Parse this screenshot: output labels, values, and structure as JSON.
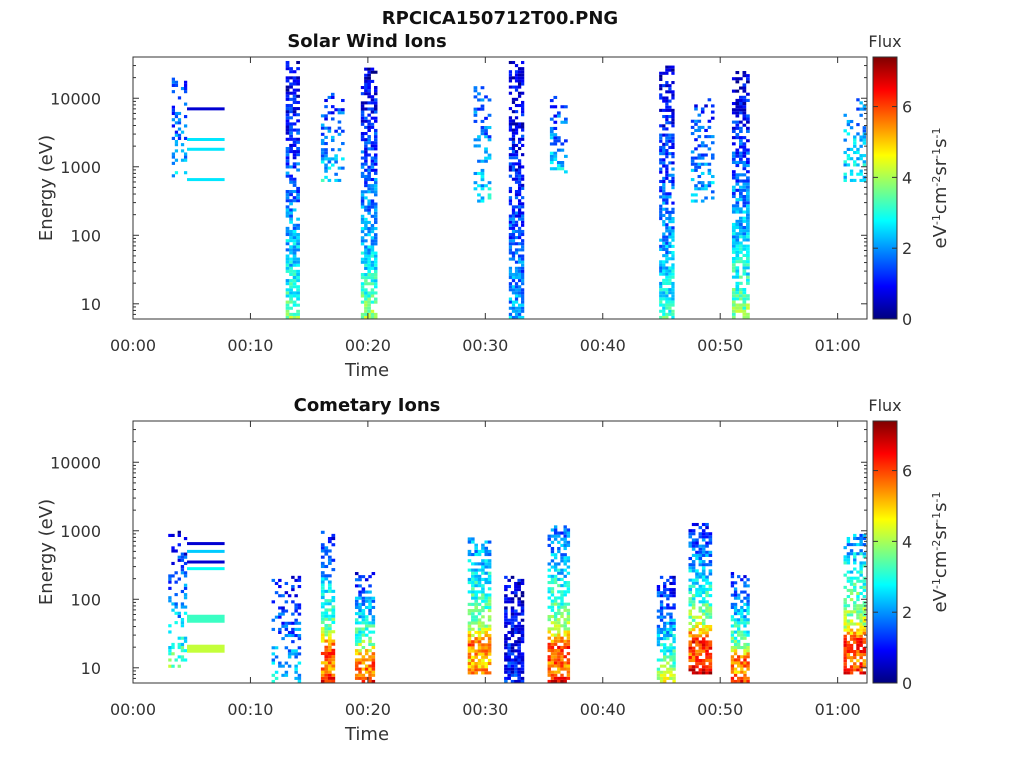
{
  "figure_title": "RPCICA150712T00.PNG",
  "colorscale": [
    "#00007f",
    "#0000ff",
    "#007fff",
    "#00ffff",
    "#7fff7f",
    "#ffff00",
    "#ff7f00",
    "#ff0000",
    "#7f0000"
  ],
  "chart_data": [
    {
      "type": "heatmap",
      "title": "Solar Wind Ions",
      "xlabel": "Time",
      "ylabel": "Energy (eV)",
      "x_ticks": [
        "00:00",
        "00:10",
        "00:20",
        "00:30",
        "00:40",
        "00:50",
        "01:00"
      ],
      "xlim_minutes": [
        0,
        62.5
      ],
      "y_scale": "log",
      "y_ticks": [
        "10",
        "100",
        "1000",
        "10000"
      ],
      "ylim": [
        6,
        40000
      ],
      "colorbar_label": "Flux",
      "colorbar_units": "eV-1cm-2sr-1s-1",
      "colorbar_ticks": [
        "0",
        "2",
        "4",
        "6"
      ],
      "colorbar_range": [
        0,
        7.4
      ],
      "bursts": [
        {
          "t_start": 13.0,
          "t_end": 14.2,
          "e_low": 6,
          "e_high": 35000,
          "v_low": 3.8,
          "v_high": 0.6
        },
        {
          "t_start": 19.4,
          "t_end": 20.8,
          "e_low": 6,
          "e_high": 28000,
          "v_low": 4.0,
          "v_high": 0.6
        },
        {
          "t_start": 32.0,
          "t_end": 33.3,
          "e_low": 6,
          "e_high": 35000,
          "v_low": 2.4,
          "v_high": 0.6
        },
        {
          "t_start": 44.8,
          "t_end": 46.1,
          "e_low": 6,
          "e_high": 30000,
          "v_low": 3.4,
          "v_high": 0.6
        },
        {
          "t_start": 51.0,
          "t_end": 52.5,
          "e_low": 6,
          "e_high": 25000,
          "v_low": 4.2,
          "v_high": 0.6
        },
        {
          "t_start": 16.0,
          "t_end": 18.0,
          "e_low": 600,
          "e_high": 12000,
          "v_low": 2.8,
          "v_high": 1.2,
          "sparse": true
        },
        {
          "t_start": 29.0,
          "t_end": 30.5,
          "e_low": 300,
          "e_high": 15000,
          "v_low": 2.8,
          "v_high": 1.4,
          "sparse": true
        },
        {
          "t_start": 35.5,
          "t_end": 37.0,
          "e_low": 800,
          "e_high": 12000,
          "v_low": 2.8,
          "v_high": 1.2,
          "sparse": true
        },
        {
          "t_start": 47.5,
          "t_end": 49.5,
          "e_low": 300,
          "e_high": 10000,
          "v_low": 2.6,
          "v_high": 1.2,
          "sparse": true
        },
        {
          "t_start": 60.5,
          "t_end": 62.4,
          "e_low": 600,
          "e_high": 10000,
          "v_low": 3.0,
          "v_high": 1.8,
          "sparse": true
        },
        {
          "t_start": 3.3,
          "t_end": 4.6,
          "e_low": 700,
          "e_high": 20000,
          "v_low": 2.6,
          "v_high": 1.2,
          "sparse": true
        }
      ],
      "lines": [
        {
          "t_start": 4.6,
          "t_end": 7.8,
          "energy": 7000,
          "value": 0.6
        },
        {
          "t_start": 4.6,
          "t_end": 7.8,
          "energy": 2500,
          "value": 2.6
        },
        {
          "t_start": 4.6,
          "t_end": 7.8,
          "energy": 1800,
          "value": 2.6
        },
        {
          "t_start": 4.6,
          "t_end": 7.8,
          "energy": 650,
          "value": 2.6
        }
      ]
    },
    {
      "type": "heatmap",
      "title": "Cometary Ions",
      "xlabel": "Time",
      "ylabel": "Energy (eV)",
      "x_ticks": [
        "00:00",
        "00:10",
        "00:20",
        "00:30",
        "00:40",
        "00:50",
        "01:00"
      ],
      "xlim_minutes": [
        0,
        62.5
      ],
      "y_scale": "log",
      "y_ticks": [
        "10",
        "100",
        "1000",
        "10000"
      ],
      "ylim": [
        6,
        40000
      ],
      "colorbar_label": "Flux",
      "colorbar_units": "eV-1cm-2sr-1s-1",
      "colorbar_ticks": [
        "0",
        "2",
        "4",
        "6"
      ],
      "colorbar_range": [
        0,
        7.4
      ],
      "bursts": [
        {
          "t_start": 3.0,
          "t_end": 4.6,
          "e_low": 10,
          "e_high": 1000,
          "v_low": 4.0,
          "v_high": 0.8,
          "sparse": true
        },
        {
          "t_start": 11.8,
          "t_end": 14.3,
          "e_low": 6,
          "e_high": 220,
          "v_low": 2.8,
          "v_high": 1.0,
          "sparse": true
        },
        {
          "t_start": 16.0,
          "t_end": 17.2,
          "e_low": 6,
          "e_high": 1000,
          "v_low": 6.8,
          "v_high": 1.0,
          "hot": true
        },
        {
          "t_start": 18.9,
          "t_end": 20.6,
          "e_low": 6,
          "e_high": 250,
          "v_low": 6.8,
          "v_high": 1.0,
          "hot": true
        },
        {
          "t_start": 28.5,
          "t_end": 30.5,
          "e_low": 8,
          "e_high": 800,
          "v_low": 5.8,
          "v_high": 2.0,
          "hot": true
        },
        {
          "t_start": 31.6,
          "t_end": 33.3,
          "e_low": 6,
          "e_high": 220,
          "v_low": 1.2,
          "v_high": 0.7
        },
        {
          "t_start": 35.3,
          "t_end": 37.2,
          "e_low": 6,
          "e_high": 1200,
          "v_low": 6.8,
          "v_high": 1.5,
          "hot": true
        },
        {
          "t_start": 44.6,
          "t_end": 46.2,
          "e_low": 6,
          "e_high": 220,
          "v_low": 5.0,
          "v_high": 0.8
        },
        {
          "t_start": 47.3,
          "t_end": 49.3,
          "e_low": 8,
          "e_high": 1300,
          "v_low": 7.2,
          "v_high": 1.0,
          "hot": true
        },
        {
          "t_start": 50.9,
          "t_end": 52.5,
          "e_low": 6,
          "e_high": 250,
          "v_low": 6.6,
          "v_high": 1.0,
          "hot": true
        },
        {
          "t_start": 60.5,
          "t_end": 62.4,
          "e_low": 8,
          "e_high": 900,
          "v_low": 6.8,
          "v_high": 2.0,
          "hot": true
        }
      ],
      "lines": [
        {
          "t_start": 4.6,
          "t_end": 7.8,
          "energy": 650,
          "value": 0.6
        },
        {
          "t_start": 4.6,
          "t_end": 7.8,
          "energy": 500,
          "value": 2.4
        },
        {
          "t_start": 4.6,
          "t_end": 7.8,
          "energy": 350,
          "value": 0.6
        },
        {
          "t_start": 4.6,
          "t_end": 7.8,
          "energy": 280,
          "value": 2.8
        },
        {
          "t_start": 4.6,
          "t_end": 7.8,
          "energy": 52,
          "value": 3.2,
          "thick": true
        },
        {
          "t_start": 4.6,
          "t_end": 7.8,
          "energy": 19,
          "value": 4.2,
          "thick": true
        }
      ]
    }
  ]
}
